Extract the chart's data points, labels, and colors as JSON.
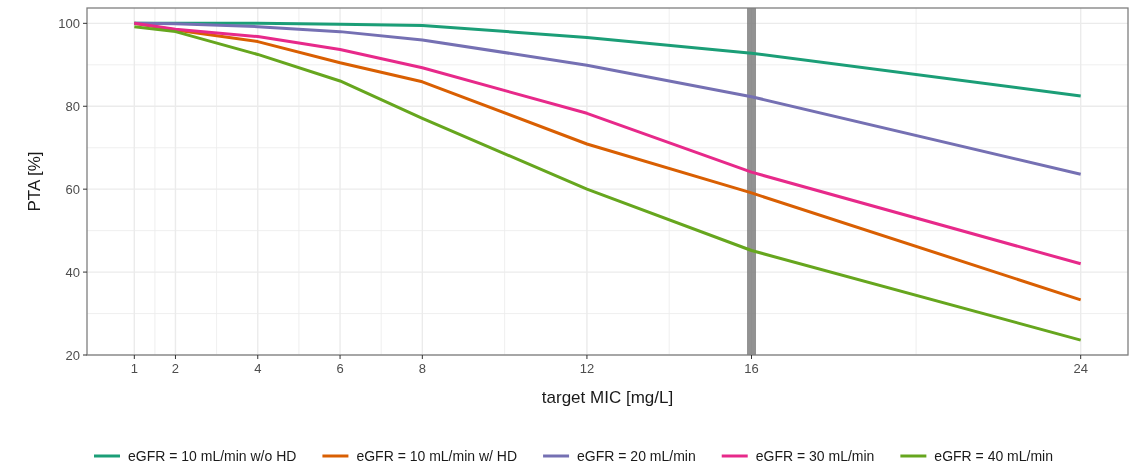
{
  "chart_data": {
    "type": "line",
    "xlabel": "target MIC [mg/L]",
    "ylabel": "PTA [%]",
    "xlim": [
      -0.15,
      25.15
    ],
    "xticks": [
      1,
      2,
      4,
      6,
      8,
      12,
      16,
      24
    ],
    "ylim": [
      20,
      103.7
    ],
    "yticks": [
      20,
      40,
      60,
      80,
      100
    ],
    "grid": true,
    "legend": "bottom",
    "line_style": "solid",
    "ref_lines": [
      {
        "axis": "x",
        "value": 16,
        "color": "#808080"
      }
    ],
    "series": [
      {
        "name": "eGFR = 10 mL/min w/o HD",
        "color": "#1b9e77",
        "x": [
          1,
          2,
          4,
          6,
          8,
          12,
          16,
          24
        ],
        "values": [
          100,
          100,
          100,
          99.8,
          99.5,
          96.6,
          92.8,
          82.5
        ]
      },
      {
        "name": "eGFR = 10 mL/min w/ HD",
        "color": "#d95f02",
        "x": [
          1,
          2,
          4,
          6,
          8,
          12,
          16,
          24
        ],
        "values": [
          100,
          98.4,
          95.6,
          90.5,
          85.9,
          70.9,
          59.1,
          33.3
        ]
      },
      {
        "name": "eGFR = 20 mL/min",
        "color": "#7570b3",
        "x": [
          1,
          2,
          4,
          6,
          8,
          12,
          16,
          24
        ],
        "values": [
          100,
          99.9,
          99.2,
          98.0,
          96.0,
          89.9,
          82.3,
          63.6
        ]
      },
      {
        "name": "eGFR = 30 mL/min",
        "color": "#e7298a",
        "x": [
          1,
          2,
          4,
          6,
          8,
          12,
          16,
          24
        ],
        "values": [
          100,
          98.6,
          96.8,
          93.7,
          89.3,
          78.3,
          64.1,
          42.0
        ]
      },
      {
        "name": "eGFR = 40 mL/min",
        "color": "#66a61e",
        "x": [
          1,
          2,
          4,
          6,
          8,
          12,
          16,
          24
        ],
        "values": [
          99.2,
          98.0,
          92.5,
          86.1,
          77.1,
          60.0,
          45.2,
          23.6
        ]
      }
    ]
  }
}
